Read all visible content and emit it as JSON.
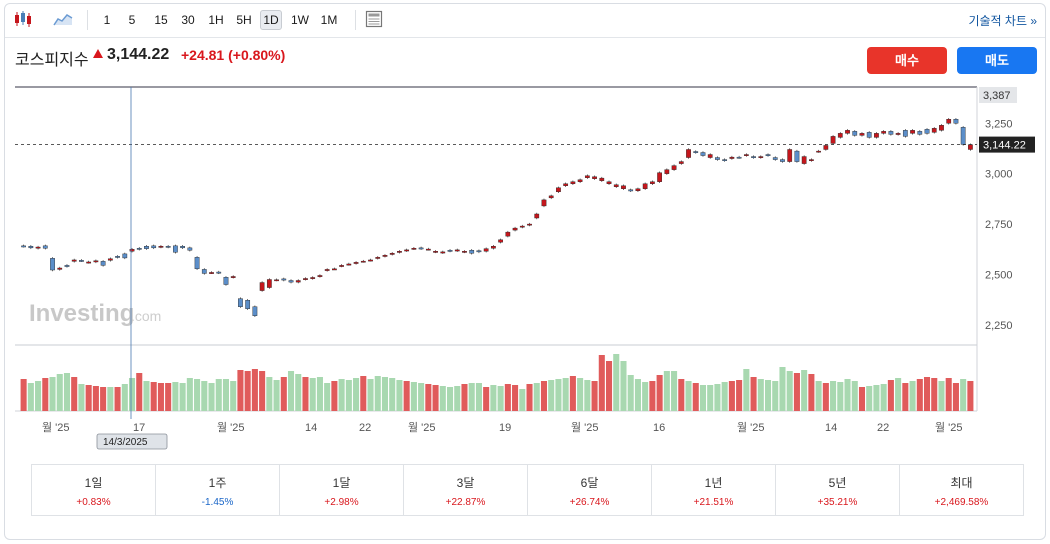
{
  "toolbar": {
    "candle_icon": "candlestick-icon",
    "area_icon": "area-chart-icon",
    "intervals": [
      "1",
      "5",
      "15",
      "30",
      "1H",
      "5H",
      "1D",
      "1W",
      "1M"
    ],
    "active_interval": "1D",
    "layout_icon": "layout-icon",
    "technical_label": "기술적 차트 »"
  },
  "quote": {
    "name": "코스피지수",
    "price": "3,144.22",
    "change": "+24.81 (+0.80%)",
    "buy_label": "매수",
    "sell_label": "매도"
  },
  "chart_data": {
    "type": "candlestick",
    "title": "코스피지수",
    "watermark": "Investing.com",
    "y_axis": {
      "ticks": [
        2250,
        2500,
        2750,
        3000,
        3250
      ],
      "tick_labels": [
        "2,250",
        "2,500",
        "2,750",
        "3,000",
        "3,250"
      ],
      "range": [
        2150,
        3430
      ],
      "max_marker": "3,387",
      "current_marker": "3,144.22"
    },
    "x_axis": {
      "tick_labels": [
        "월 '25",
        "17",
        "월 '25",
        "14",
        "22",
        "월 '25",
        "19",
        "월 '25",
        "16",
        "월 '25",
        "14",
        "22",
        "월 '25"
      ],
      "crosshair_date": "14/3/2025"
    },
    "candles": [
      [
        2642,
        2640,
        "d"
      ],
      [
        2640,
        2632,
        "d"
      ],
      [
        2630,
        2636,
        "u"
      ],
      [
        2642,
        2630,
        "d"
      ],
      [
        2580,
        2522,
        "d"
      ],
      [
        2525,
        2532,
        "u"
      ],
      [
        2545,
        2540,
        "d"
      ],
      [
        2565,
        2572,
        "u"
      ],
      [
        2570,
        2568,
        "d"
      ],
      [
        2560,
        2562,
        "u"
      ],
      [
        2562,
        2568,
        "u"
      ],
      [
        2565,
        2545,
        "d"
      ],
      [
        2570,
        2578,
        "u"
      ],
      [
        2590,
        2585,
        "d"
      ],
      [
        2602,
        2582,
        "d"
      ],
      [
        2615,
        2625,
        "u"
      ],
      [
        2630,
        2625,
        "d"
      ],
      [
        2640,
        2628,
        "d"
      ],
      [
        2642,
        2632,
        "d"
      ],
      [
        2636,
        2640,
        "u"
      ],
      [
        2640,
        2636,
        "d"
      ],
      [
        2642,
        2610,
        "d"
      ],
      [
        2640,
        2632,
        "d"
      ],
      [
        2632,
        2620,
        "d"
      ],
      [
        2585,
        2528,
        "d"
      ],
      [
        2525,
        2505,
        "d"
      ],
      [
        2510,
        2508,
        "u"
      ],
      [
        2512,
        2508,
        "d"
      ],
      [
        2486,
        2450,
        "d"
      ],
      [
        2486,
        2490,
        "u"
      ],
      [
        2380,
        2340,
        "d"
      ],
      [
        2372,
        2330,
        "d"
      ],
      [
        2340,
        2295,
        "d"
      ],
      [
        2420,
        2460,
        "u"
      ],
      [
        2435,
        2475,
        "u"
      ],
      [
        2472,
        2474,
        "u"
      ],
      [
        2478,
        2472,
        "d"
      ],
      [
        2470,
        2462,
        "d"
      ],
      [
        2462,
        2470,
        "u"
      ],
      [
        2476,
        2480,
        "u"
      ],
      [
        2480,
        2485,
        "u"
      ],
      [
        2490,
        2495,
        "u"
      ],
      [
        2520,
        2525,
        "u"
      ],
      [
        2528,
        2528,
        "u"
      ],
      [
        2542,
        2545,
        "u"
      ],
      [
        2550,
        2552,
        "u"
      ],
      [
        2555,
        2560,
        "u"
      ],
      [
        2565,
        2566,
        "u"
      ],
      [
        2570,
        2572,
        "u"
      ],
      [
        2580,
        2585,
        "u"
      ],
      [
        2590,
        2595,
        "u"
      ],
      [
        2600,
        2605,
        "u"
      ],
      [
        2610,
        2615,
        "u"
      ],
      [
        2618,
        2622,
        "u"
      ],
      [
        2628,
        2630,
        "u"
      ],
      [
        2632,
        2628,
        "d"
      ],
      [
        2625,
        2626,
        "u"
      ],
      [
        2612,
        2615,
        "u"
      ],
      [
        2608,
        2612,
        "u"
      ],
      [
        2620,
        2616,
        "d"
      ],
      [
        2618,
        2622,
        "u"
      ],
      [
        2612,
        2615,
        "u"
      ],
      [
        2620,
        2605,
        "d"
      ],
      [
        2618,
        2612,
        "d"
      ],
      [
        2615,
        2628,
        "u"
      ],
      [
        2630,
        2640,
        "u"
      ],
      [
        2660,
        2672,
        "u"
      ],
      [
        2690,
        2710,
        "u"
      ],
      [
        2720,
        2730,
        "u"
      ],
      [
        2735,
        2740,
        "u"
      ],
      [
        2745,
        2750,
        "u"
      ],
      [
        2780,
        2800,
        "u"
      ],
      [
        2840,
        2870,
        "u"
      ],
      [
        2880,
        2890,
        "u"
      ],
      [
        2910,
        2930,
        "u"
      ],
      [
        2940,
        2950,
        "u"
      ],
      [
        2950,
        2960,
        "u"
      ],
      [
        2960,
        2970,
        "u"
      ],
      [
        2980,
        2990,
        "u"
      ],
      [
        2975,
        2985,
        "u"
      ],
      [
        2965,
        2978,
        "u"
      ],
      [
        2950,
        2960,
        "u"
      ],
      [
        2935,
        2945,
        "u"
      ],
      [
        2925,
        2940,
        "u"
      ],
      [
        2920,
        2915,
        "d"
      ],
      [
        2915,
        2925,
        "u"
      ],
      [
        2925,
        2950,
        "u"
      ],
      [
        2950,
        2960,
        "u"
      ],
      [
        2960,
        3005,
        "u"
      ],
      [
        3000,
        3020,
        "u"
      ],
      [
        3020,
        3040,
        "u"
      ],
      [
        3050,
        3060,
        "u"
      ],
      [
        3080,
        3120,
        "u"
      ],
      [
        3110,
        3105,
        "d"
      ],
      [
        3105,
        3090,
        "d"
      ],
      [
        3080,
        3095,
        "u"
      ],
      [
        3080,
        3070,
        "d"
      ],
      [
        3070,
        3065,
        "d"
      ],
      [
        3075,
        3082,
        "u"
      ],
      [
        3082,
        3080,
        "d"
      ],
      [
        3090,
        3095,
        "u"
      ],
      [
        3085,
        3080,
        "d"
      ],
      [
        3080,
        3085,
        "u"
      ],
      [
        3095,
        3090,
        "d"
      ],
      [
        3080,
        3070,
        "d"
      ],
      [
        3070,
        3060,
        "d"
      ],
      [
        3060,
        3120,
        "u"
      ],
      [
        3112,
        3060,
        "d"
      ],
      [
        3050,
        3085,
        "u"
      ],
      [
        3065,
        3070,
        "u"
      ],
      [
        3110,
        3112,
        "u"
      ],
      [
        3120,
        3140,
        "u"
      ],
      [
        3150,
        3185,
        "u"
      ],
      [
        3180,
        3200,
        "u"
      ],
      [
        3200,
        3215,
        "u"
      ],
      [
        3210,
        3190,
        "d"
      ],
      [
        3190,
        3200,
        "u"
      ],
      [
        3205,
        3180,
        "d"
      ],
      [
        3180,
        3200,
        "u"
      ],
      [
        3200,
        3210,
        "u"
      ],
      [
        3210,
        3195,
        "d"
      ],
      [
        3195,
        3200,
        "u"
      ],
      [
        3215,
        3185,
        "d"
      ],
      [
        3200,
        3215,
        "u"
      ],
      [
        3210,
        3195,
        "d"
      ],
      [
        3220,
        3200,
        "d"
      ],
      [
        3205,
        3225,
        "u"
      ],
      [
        3215,
        3240,
        "u"
      ],
      [
        3250,
        3270,
        "u"
      ],
      [
        3270,
        3250,
        "d"
      ],
      [
        3230,
        3145,
        "d"
      ],
      [
        3120,
        3144,
        "u"
      ]
    ],
    "volume": {
      "colors": [
        "r",
        "g",
        "g",
        "r",
        "g",
        "g",
        "g",
        "r",
        "g",
        "r",
        "r",
        "r",
        "g",
        "r",
        "g",
        "g",
        "r",
        "g",
        "r",
        "r",
        "r",
        "g",
        "g",
        "g",
        "g",
        "g",
        "g",
        "g",
        "g",
        "g",
        "r",
        "r",
        "r",
        "r",
        "g",
        "g",
        "r",
        "g",
        "g",
        "r",
        "g",
        "g",
        "g",
        "r",
        "g",
        "g",
        "g",
        "r",
        "g",
        "g",
        "g",
        "g",
        "g",
        "r",
        "g",
        "g",
        "r",
        "r",
        "g",
        "g",
        "g",
        "r",
        "g",
        "g",
        "r",
        "g",
        "g",
        "r",
        "r",
        "g",
        "r",
        "g",
        "r",
        "g",
        "g",
        "g",
        "r",
        "g",
        "g",
        "r",
        "r",
        "r",
        "g",
        "g",
        "g",
        "g",
        "g",
        "r",
        "r",
        "g",
        "g",
        "r",
        "g",
        "r",
        "g",
        "g",
        "g",
        "g",
        "r",
        "r",
        "g",
        "r",
        "g",
        "g",
        "g",
        "g",
        "g",
        "r",
        "g",
        "r",
        "g",
        "r",
        "g",
        "g",
        "g",
        "g",
        "r",
        "g",
        "g",
        "g",
        "r",
        "g",
        "r",
        "g",
        "r",
        "r",
        "r",
        "g",
        "r",
        "r",
        "g",
        "r"
      ],
      "values": [
        32,
        28,
        30,
        33,
        34,
        37,
        38,
        34,
        27,
        26,
        25,
        24,
        24,
        24,
        27,
        33,
        38,
        30,
        29,
        28,
        28,
        29,
        28,
        33,
        32,
        30,
        28,
        32,
        32,
        30,
        41,
        40,
        42,
        40,
        34,
        31,
        34,
        40,
        37,
        34,
        33,
        34,
        28,
        30,
        32,
        31,
        33,
        35,
        32,
        35,
        34,
        33,
        31,
        30,
        29,
        28,
        27,
        26,
        25,
        24,
        25,
        27,
        28,
        28,
        24,
        26,
        25,
        27,
        26,
        22,
        27,
        28,
        30,
        31,
        32,
        33,
        35,
        33,
        31,
        30,
        56,
        50,
        57,
        50,
        36,
        32,
        29,
        30,
        36,
        40,
        40,
        32,
        30,
        28,
        26,
        26,
        27,
        29,
        30,
        31,
        42,
        34,
        32,
        31,
        30,
        44,
        40,
        38,
        41,
        37,
        30,
        28,
        30,
        29,
        32,
        30,
        24,
        25,
        26,
        27,
        31,
        33,
        28,
        30,
        32,
        34,
        33,
        30,
        33,
        28,
        32,
        30
      ]
    }
  },
  "performance": [
    {
      "label": "1일",
      "value": "+0.83%",
      "dir": "pos"
    },
    {
      "label": "1주",
      "value": "-1.45%",
      "dir": "neg"
    },
    {
      "label": "1달",
      "value": "+2.98%",
      "dir": "pos"
    },
    {
      "label": "3달",
      "value": "+22.87%",
      "dir": "pos"
    },
    {
      "label": "6달",
      "value": "+26.74%",
      "dir": "pos"
    },
    {
      "label": "1년",
      "value": "+21.51%",
      "dir": "pos"
    },
    {
      "label": "5년",
      "value": "+35.21%",
      "dir": "pos"
    },
    {
      "label": "최대",
      "value": "+2,469.58%",
      "dir": "pos"
    }
  ],
  "colors": {
    "up": "#c5161c",
    "down": "#5b8ec9",
    "vol_red": "#e05b5b",
    "vol_green": "#a8d8b0",
    "buy": "#e8342a",
    "sell": "#1877f2"
  }
}
